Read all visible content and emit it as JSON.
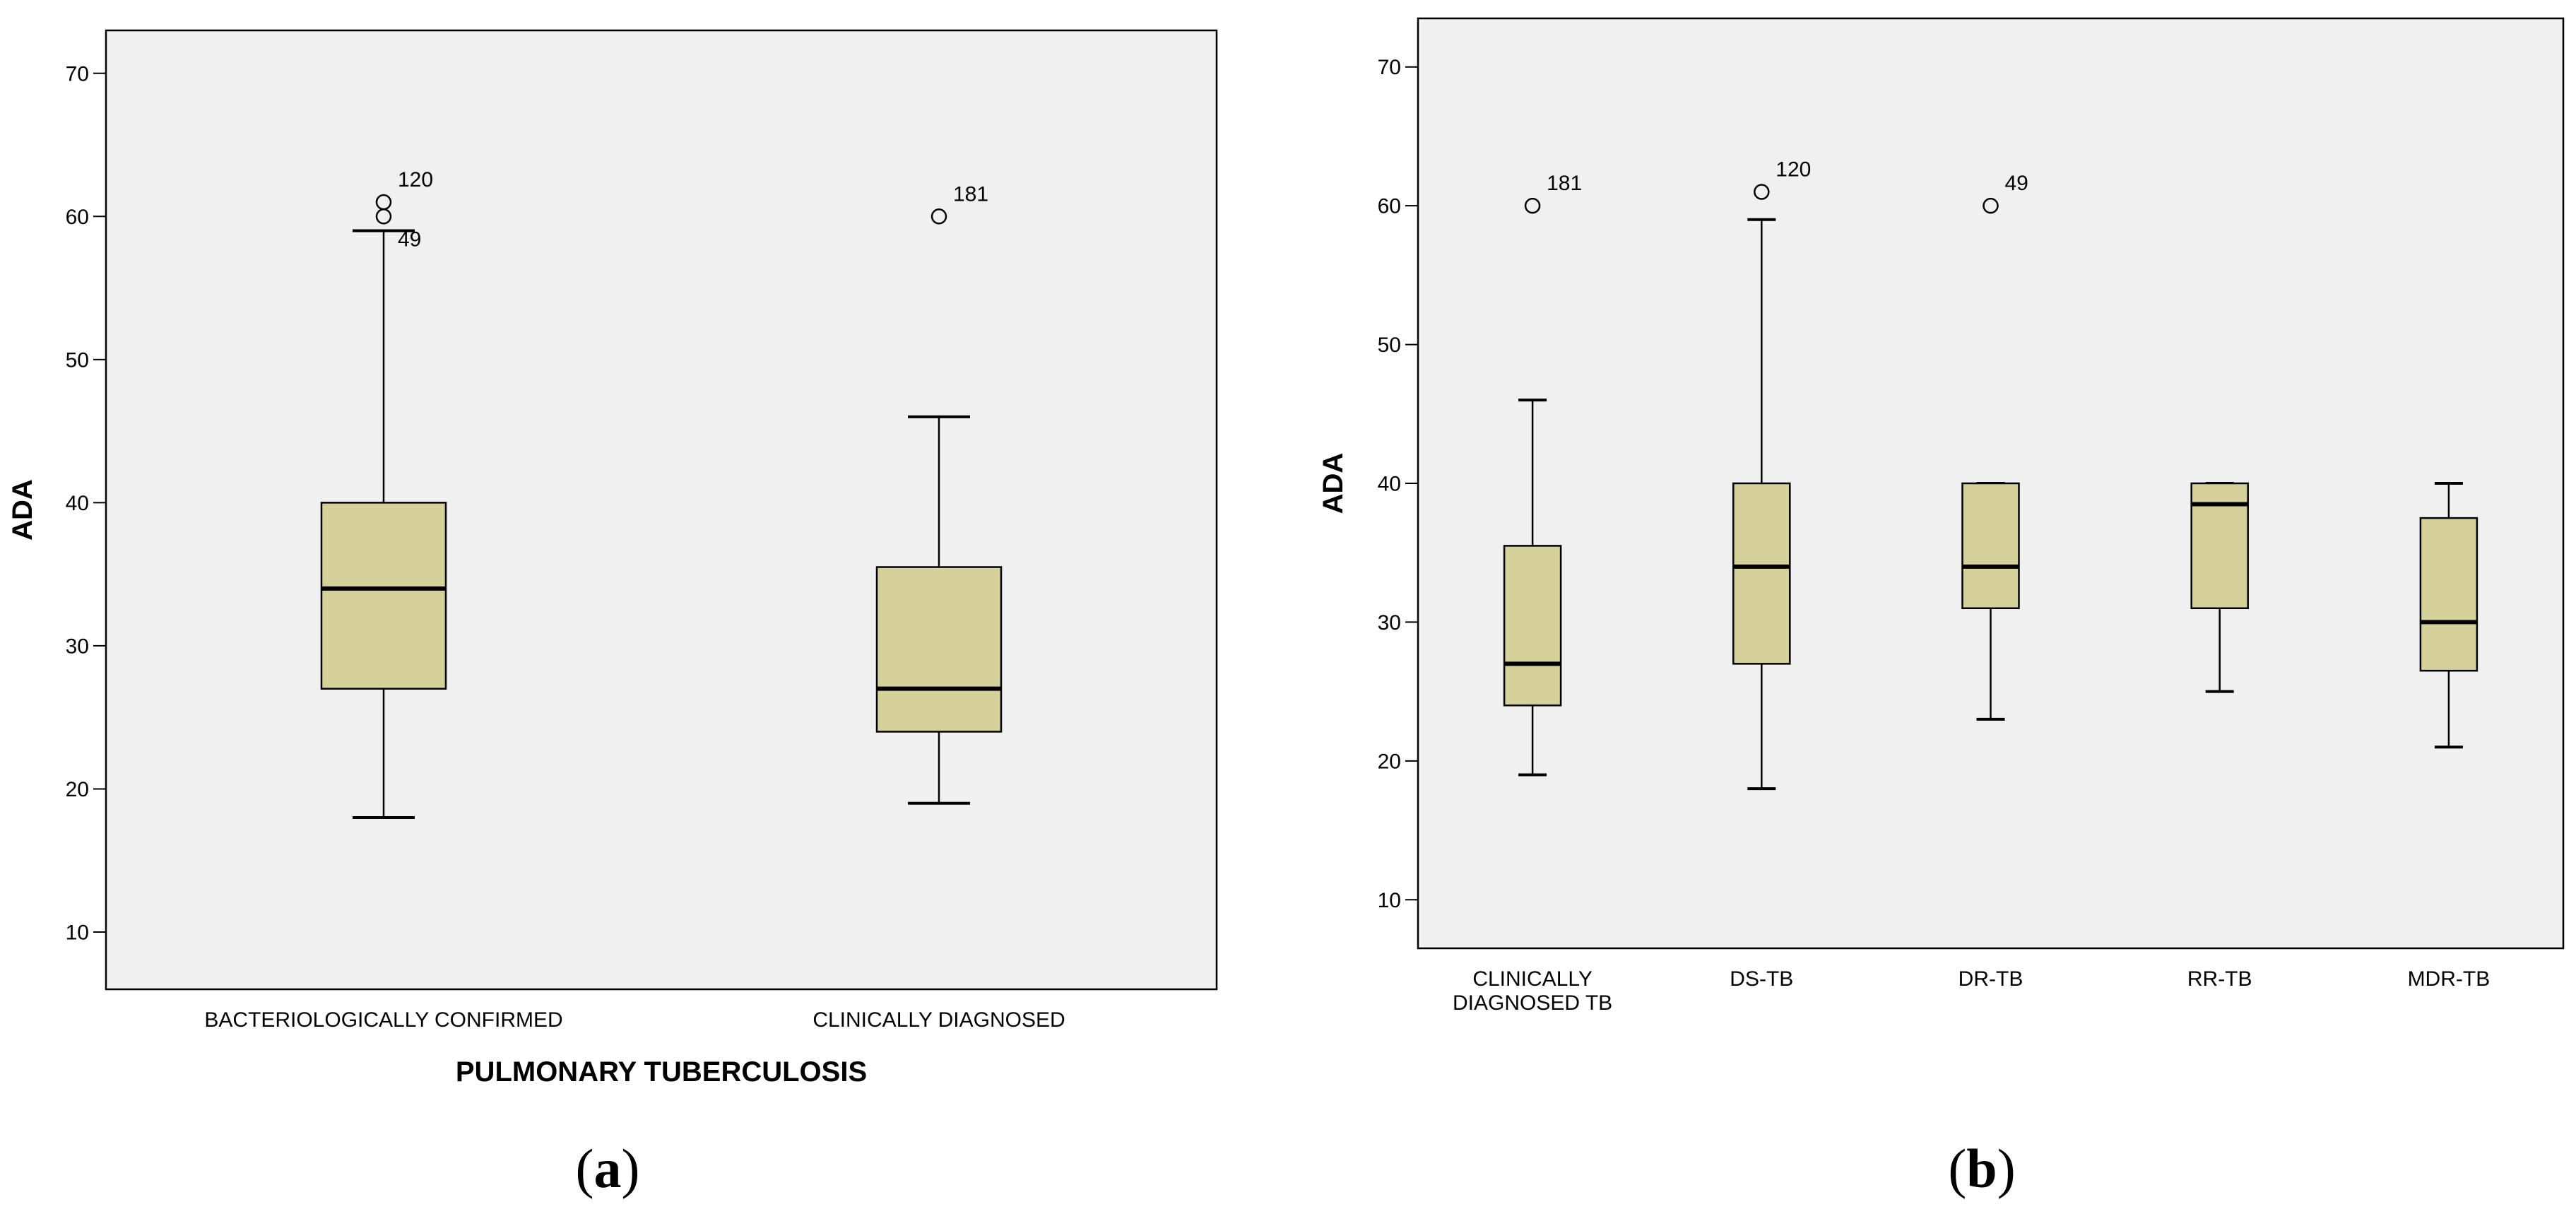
{
  "colors": {
    "plot_background": "#f0f0f0",
    "box_fill": "#d6d09a",
    "stroke": "#000000",
    "page_background": "#ffffff"
  },
  "chart_data": [
    {
      "type": "boxplot",
      "panel_label": "a",
      "xlabel": "PULMONARY TUBERCULOSIS",
      "ylabel": "ADA",
      "ylim": [
        6,
        73
      ],
      "yticks": [
        10,
        20,
        30,
        40,
        50,
        60,
        70
      ],
      "grid": false,
      "categories": [
        "BACTERIOLOGICALLY CONFIRMED",
        "CLINICALLY DIAGNOSED"
      ],
      "boxes": [
        {
          "category": "BACTERIOLOGICALLY CONFIRMED",
          "whisker_low": 18,
          "q1": 27,
          "median": 34,
          "q3": 40,
          "whisker_high": 59,
          "outliers": [
            {
              "value": 61,
              "label": "120"
            },
            {
              "value": 60,
              "label": "49"
            }
          ]
        },
        {
          "category": "CLINICALLY DIAGNOSED",
          "whisker_low": 19,
          "q1": 24,
          "median": 27,
          "q3": 35.5,
          "whisker_high": 46,
          "outliers": [
            {
              "value": 60,
              "label": "181"
            }
          ]
        }
      ]
    },
    {
      "type": "boxplot",
      "panel_label": "b",
      "xlabel": "",
      "ylabel": "ADA",
      "ylim": [
        6.5,
        73.5
      ],
      "yticks": [
        10,
        20,
        30,
        40,
        50,
        60,
        70
      ],
      "grid": false,
      "categories": [
        "CLINICALLY DIAGNOSED TB",
        "DS-TB",
        "DR-TB",
        "RR-TB",
        "MDR-TB"
      ],
      "category_lines": [
        [
          "CLINICALLY",
          "DIAGNOSED TB"
        ],
        [
          "DS-TB"
        ],
        [
          "DR-TB"
        ],
        [
          "RR-TB"
        ],
        [
          "MDR-TB"
        ]
      ],
      "boxes": [
        {
          "category": "CLINICALLY DIAGNOSED TB",
          "whisker_low": 19,
          "q1": 24,
          "median": 27,
          "q3": 35.5,
          "whisker_high": 46,
          "outliers": [
            {
              "value": 60,
              "label": "181"
            }
          ]
        },
        {
          "category": "DS-TB",
          "whisker_low": 18,
          "q1": 27,
          "median": 34,
          "q3": 40,
          "whisker_high": 59,
          "outliers": [
            {
              "value": 61,
              "label": "120"
            }
          ]
        },
        {
          "category": "DR-TB",
          "whisker_low": 23,
          "q1": 31,
          "median": 34,
          "q3": 40,
          "whisker_high": 40,
          "outliers": [
            {
              "value": 60,
              "label": "49"
            }
          ]
        },
        {
          "category": "RR-TB",
          "whisker_low": 25,
          "q1": 31,
          "median": 38.5,
          "q3": 40,
          "whisker_high": 40,
          "outliers": []
        },
        {
          "category": "MDR-TB",
          "whisker_low": 21,
          "q1": 26.5,
          "median": 30,
          "q3": 37.5,
          "whisker_high": 40,
          "outliers": []
        }
      ]
    }
  ]
}
